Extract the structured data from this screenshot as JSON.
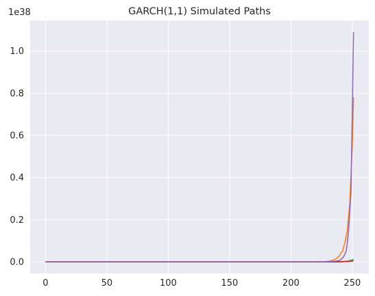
{
  "chart_data": {
    "type": "line",
    "title": "GARCH(1,1) Simulated Paths",
    "xlabel": "",
    "ylabel": "",
    "y_offset_label": "1e38",
    "xlim": [
      -12.5,
      263.5
    ],
    "ylim": [
      -0.055,
      1.145
    ],
    "x_ticks": [
      0,
      50,
      100,
      150,
      200,
      250
    ],
    "x_tick_labels": [
      "0",
      "50",
      "100",
      "150",
      "200",
      "250"
    ],
    "y_ticks": [
      0.0,
      0.2,
      0.4,
      0.6,
      0.8,
      1.0
    ],
    "y_tick_labels": [
      "0.0",
      "0.2",
      "0.4",
      "0.6",
      "0.8",
      "1.0"
    ],
    "grid": true,
    "background": "#eaeaf2",
    "series": [
      {
        "color": "#1f77b4",
        "x": [
          0,
          200,
          220,
          230,
          235,
          240,
          243,
          246,
          248,
          250,
          251
        ],
        "y": [
          0,
          0,
          0,
          0,
          0,
          0,
          0.001,
          0.002,
          0.003,
          0.004,
          0.005
        ]
      },
      {
        "color": "#ff7f0e",
        "x": [
          0,
          200,
          220,
          228,
          232,
          236,
          239,
          242,
          244,
          246,
          248,
          250,
          251
        ],
        "y": [
          0,
          0,
          0,
          0.001,
          0.004,
          0.012,
          0.025,
          0.05,
          0.09,
          0.15,
          0.28,
          0.55,
          0.78
        ]
      },
      {
        "color": "#2ca02c",
        "x": [
          0,
          200,
          220,
          230,
          235,
          240,
          244,
          247,
          249,
          250,
          251
        ],
        "y": [
          0,
          0,
          0,
          0,
          0,
          0.001,
          0.002,
          0.004,
          0.007,
          0.009,
          0.011
        ]
      },
      {
        "color": "#d62728",
        "x": [
          0,
          200,
          220,
          230,
          235,
          240,
          244,
          247,
          249,
          250,
          251
        ],
        "y": [
          0,
          0,
          0,
          0,
          0,
          0,
          0.001,
          0.002,
          0.003,
          0.004,
          0.005
        ]
      },
      {
        "color": "#9467bd",
        "x": [
          0,
          200,
          225,
          232,
          236,
          239,
          241,
          243,
          245,
          246,
          247,
          248,
          249,
          250,
          251
        ],
        "y": [
          0,
          0,
          0,
          0.001,
          0.003,
          0.006,
          0.012,
          0.025,
          0.05,
          0.09,
          0.15,
          0.24,
          0.34,
          0.7,
          1.09
        ]
      }
    ]
  }
}
